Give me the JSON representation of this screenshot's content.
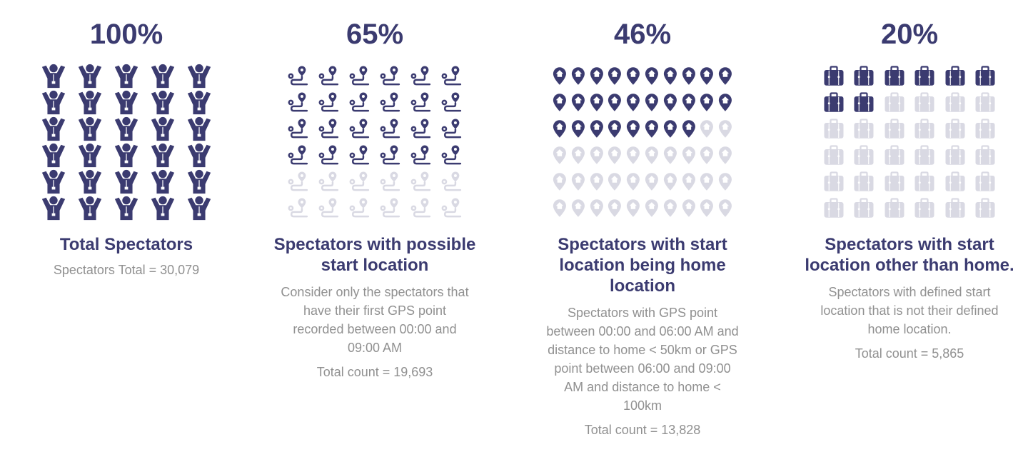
{
  "colors": {
    "filled": "#3b3b70",
    "empty": "#d9d9e3"
  },
  "chart_data": [
    {
      "type": "pictogram",
      "percent_label": "100%",
      "value_percent": 100,
      "icon": "person-arms-raised-icon",
      "grid": {
        "cols": 5,
        "rows": 6
      },
      "filled_icons": 30,
      "title": "Total Spectators",
      "description": "",
      "count_text": "Spectators Total = 30,079",
      "count": 30079
    },
    {
      "type": "pictogram",
      "percent_label": "65%",
      "value_percent": 65,
      "icon": "route-icon",
      "grid": {
        "cols": 6,
        "rows": 6
      },
      "filled_icons": 24,
      "title": "Spectators with possible start location",
      "description": "Consider only the spectators that have their first GPS point recorded between 00:00 and 09:00 AM",
      "count_text": "Total count = 19,693",
      "count": 19693
    },
    {
      "type": "pictogram",
      "percent_label": "46%",
      "value_percent": 46,
      "icon": "home-location-pin-icon",
      "grid": {
        "cols": 10,
        "rows": 6
      },
      "filled_icons": 28,
      "title": "Spectators with start location being home location",
      "description": "Spectators with GPS point between 00:00 and 06:00 AM and distance to home < 50km or GPS point between 06:00 and 09:00 AM and distance to home < 100km",
      "count_text": "Total count = 13,828",
      "count": 13828
    },
    {
      "type": "pictogram",
      "percent_label": "20%",
      "value_percent": 20,
      "icon": "suitcase-icon",
      "grid": {
        "cols": 6,
        "rows": 6
      },
      "filled_icons": 8,
      "title": "Spectators with start location other than home.",
      "description": "Spectators with defined start location that is not their defined home location.",
      "count_text": "Total count = 5,865",
      "count": 5865
    }
  ]
}
